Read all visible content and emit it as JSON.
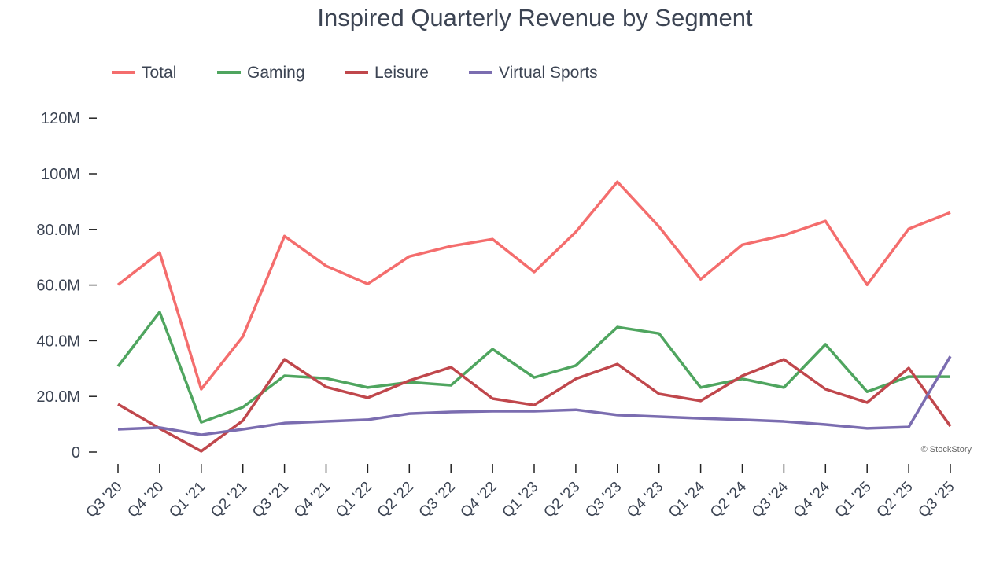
{
  "chart_data": {
    "type": "line",
    "title": "Inspired Quarterly Revenue by Segment",
    "categories": [
      "Q3 '20",
      "Q4 '20",
      "Q1 '21",
      "Q2 '21",
      "Q3 '21",
      "Q4 '21",
      "Q1 '22",
      "Q2 '22",
      "Q3 '22",
      "Q4 '22",
      "Q1 '23",
      "Q2 '23",
      "Q3 '23",
      "Q4 '23",
      "Q1 '24",
      "Q2 '24",
      "Q3 '24",
      "Q4 '24",
      "Q1 '25",
      "Q2 '25",
      "Q3 '25"
    ],
    "series": [
      {
        "name": "Total",
        "color": "#f46d6d",
        "values": [
          60100000,
          71700000,
          22600000,
          41500000,
          77600000,
          66900000,
          60400000,
          70300000,
          74000000,
          76500000,
          64700000,
          79100000,
          97100000,
          81000000,
          62100000,
          74500000,
          77900000,
          83000000,
          60100000,
          80200000,
          86100000
        ]
      },
      {
        "name": "Gaming",
        "color": "#4fa55f",
        "values": [
          30800000,
          50300000,
          10700000,
          16100000,
          27400000,
          26500000,
          23200000,
          25100000,
          24000000,
          37000000,
          26800000,
          31100000,
          44900000,
          42600000,
          23200000,
          26300000,
          23200000,
          38700000,
          21700000,
          27100000,
          27100000
        ]
      },
      {
        "name": "Leisure",
        "color": "#c0474c",
        "values": [
          17200000,
          8500000,
          300000,
          11300000,
          33300000,
          23400000,
          19500000,
          25700000,
          30500000,
          19200000,
          16900000,
          26300000,
          31600000,
          20900000,
          18400000,
          27400000,
          33300000,
          22600000,
          17800000,
          30200000,
          9300000
        ]
      },
      {
        "name": "Virtual Sports",
        "color": "#7b6db0",
        "values": [
          8200000,
          8800000,
          6200000,
          8200000,
          10400000,
          11000000,
          11600000,
          13800000,
          14400000,
          14700000,
          14700000,
          15200000,
          13300000,
          12700000,
          12100000,
          11600000,
          11000000,
          9900000,
          8500000,
          9000000,
          34400000
        ]
      }
    ],
    "ylim": [
      0,
      125000000
    ],
    "yticks": [
      0,
      {
        "value": 20000000,
        "label": "20.0M"
      },
      {
        "value": 40000000,
        "label": "40.0M"
      },
      {
        "value": 60000000,
        "label": "60.0M"
      },
      {
        "value": 80000000,
        "label": "80.0M"
      },
      {
        "value": 100000000,
        "label": "100M"
      },
      {
        "value": 120000000,
        "label": "120M"
      }
    ],
    "legend": "top-left",
    "annotation": "© StockStory"
  }
}
